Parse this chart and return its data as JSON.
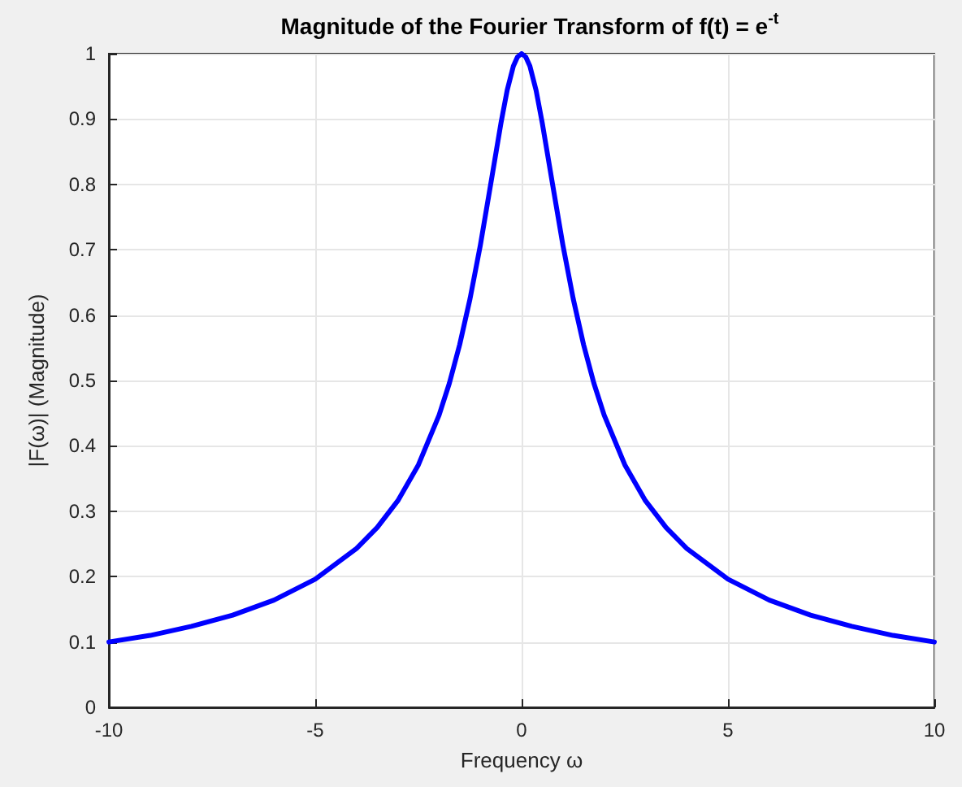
{
  "chart_data": {
    "type": "line",
    "title": "Magnitude of the Fourier Transform of f(t) = e$^{-t}$",
    "xlabel": "Frequency ω",
    "ylabel": "|F(ω)| (Magnitude)",
    "x": [
      -10,
      -9,
      -8,
      -7,
      -6,
      -5,
      -4,
      -3.5,
      -3,
      -2.5,
      -2,
      -1.75,
      -1.5,
      -1.25,
      -1,
      -0.75,
      -0.5,
      -0.35,
      -0.2,
      -0.1,
      0,
      0.1,
      0.2,
      0.35,
      0.5,
      0.75,
      1,
      1.25,
      1.5,
      1.75,
      2,
      2.5,
      3,
      3.5,
      4,
      5,
      6,
      7,
      8,
      9,
      10
    ],
    "series": [
      {
        "color": "#0000ff",
        "values": [
          0.1,
          0.11,
          0.124,
          0.141,
          0.164,
          0.196,
          0.243,
          0.275,
          0.316,
          0.371,
          0.447,
          0.496,
          0.555,
          0.625,
          0.707,
          0.8,
          0.894,
          0.944,
          0.981,
          0.995,
          1,
          0.995,
          0.981,
          0.944,
          0.894,
          0.8,
          0.707,
          0.625,
          0.555,
          0.496,
          0.447,
          0.371,
          0.316,
          0.275,
          0.243,
          0.196,
          0.164,
          0.141,
          0.124,
          0.11,
          0.1
        ]
      }
    ],
    "xlim": [
      -10,
      10
    ],
    "xticks": [
      -10,
      -5,
      0,
      5,
      10
    ],
    "ylim": [
      0,
      1
    ],
    "yticks": [
      0,
      0.1,
      0.2,
      0.3,
      0.4,
      0.5,
      0.6,
      0.7,
      0.8,
      0.9,
      1
    ],
    "grid": true,
    "marker": "none",
    "line_style": "solid"
  }
}
